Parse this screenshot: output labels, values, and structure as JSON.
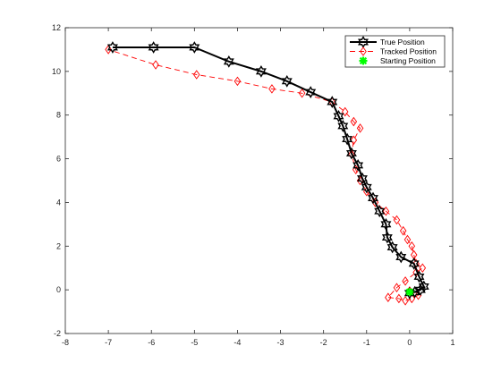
{
  "chart_data": {
    "type": "line",
    "title": "",
    "xlabel": "",
    "ylabel": "",
    "xlim": [
      -8,
      1
    ],
    "ylim": [
      -2,
      12
    ],
    "xticks": [
      -8,
      -7,
      -6,
      -5,
      -4,
      -3,
      -2,
      -1,
      0,
      1
    ],
    "yticks": [
      -2,
      0,
      2,
      4,
      6,
      8,
      10,
      12
    ],
    "grid": false,
    "legend_position": "top-right",
    "series": [
      {
        "name": "True Position",
        "color": "#000000",
        "marker": "hexagram",
        "line_style": "solid",
        "x": [
          0.0,
          0.12,
          0.25,
          0.33,
          0.22,
          0.1,
          -0.2,
          -0.4,
          -0.52,
          -0.55,
          -0.7,
          -0.85,
          -1.0,
          -1.1,
          -1.2,
          -1.35,
          -1.45,
          -1.55,
          -1.65,
          -1.8,
          -2.3,
          -2.85,
          -3.45,
          -4.2,
          -5.0,
          -5.95,
          -6.9
        ],
        "y": [
          -0.15,
          -0.1,
          0.0,
          0.15,
          0.6,
          1.2,
          1.5,
          1.95,
          2.4,
          3.0,
          3.6,
          4.2,
          4.7,
          5.1,
          5.7,
          6.25,
          6.9,
          7.5,
          7.95,
          8.6,
          9.05,
          9.55,
          10.0,
          10.45,
          11.1,
          11.1,
          11.1
        ]
      },
      {
        "name": "Tracked Position",
        "color": "#ff0000",
        "marker": "diamond",
        "line_style": "dashed",
        "x": [
          0.0,
          0.2,
          0.05,
          -0.1,
          -0.25,
          -0.5,
          -0.3,
          -0.1,
          0.15,
          0.3,
          0.15,
          0.1,
          0.05,
          -0.05,
          -0.15,
          -0.3,
          -0.55,
          -0.8,
          -1.0,
          -1.15,
          -1.25,
          -1.35,
          -1.3,
          -1.15,
          -1.3,
          -1.5,
          -1.8,
          -2.5,
          -3.2,
          -4.0,
          -4.95,
          -5.9,
          -7.0
        ],
        "y": [
          -0.05,
          -0.25,
          -0.4,
          -0.5,
          -0.4,
          -0.35,
          0.1,
          0.4,
          0.8,
          1.0,
          1.2,
          1.6,
          2.0,
          2.3,
          2.7,
          3.2,
          3.6,
          4.0,
          4.5,
          5.0,
          5.5,
          6.2,
          6.85,
          7.4,
          7.7,
          8.15,
          8.6,
          9.0,
          9.2,
          9.55,
          9.85,
          10.3,
          11.0
        ]
      },
      {
        "name": "Starting Position",
        "color": "#00ff00",
        "marker": "star",
        "line_style": "none",
        "x": [
          0.0
        ],
        "y": [
          -0.1
        ]
      }
    ]
  }
}
